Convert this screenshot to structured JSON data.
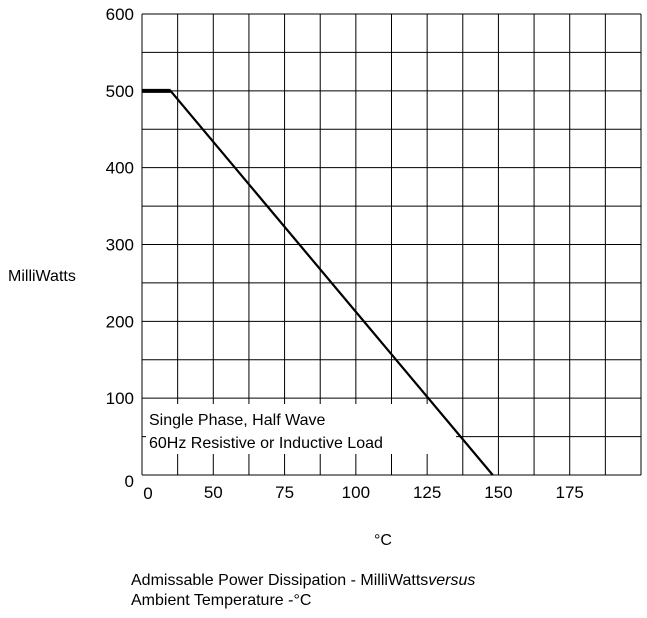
{
  "chart_data": {
    "type": "line",
    "ylabel": "MilliWatts",
    "xlabel": "°C",
    "x_ticks": [
      "0",
      "50",
      "75",
      "100",
      "125",
      "150",
      "175"
    ],
    "y_ticks": [
      "0",
      "100",
      "200",
      "300",
      "400",
      "500",
      "600"
    ],
    "xlim": [
      25,
      200
    ],
    "ylim": [
      0,
      600
    ],
    "x_grid_step": 12.5,
    "y_grid_step": 50,
    "grid": true,
    "series": [
      {
        "x": [
          25,
          35,
          148
        ],
        "y": [
          500,
          500,
          0
        ]
      }
    ],
    "annotation_lines": [
      "Single Phase, Half Wave",
      "60Hz Resistive or Inductive Load"
    ]
  },
  "caption": {
    "line1_main": "Admissable Power Dissipation  -  MilliWatts",
    "line1_italic": "versus",
    "line2": "Ambient Temperature  -°C"
  }
}
